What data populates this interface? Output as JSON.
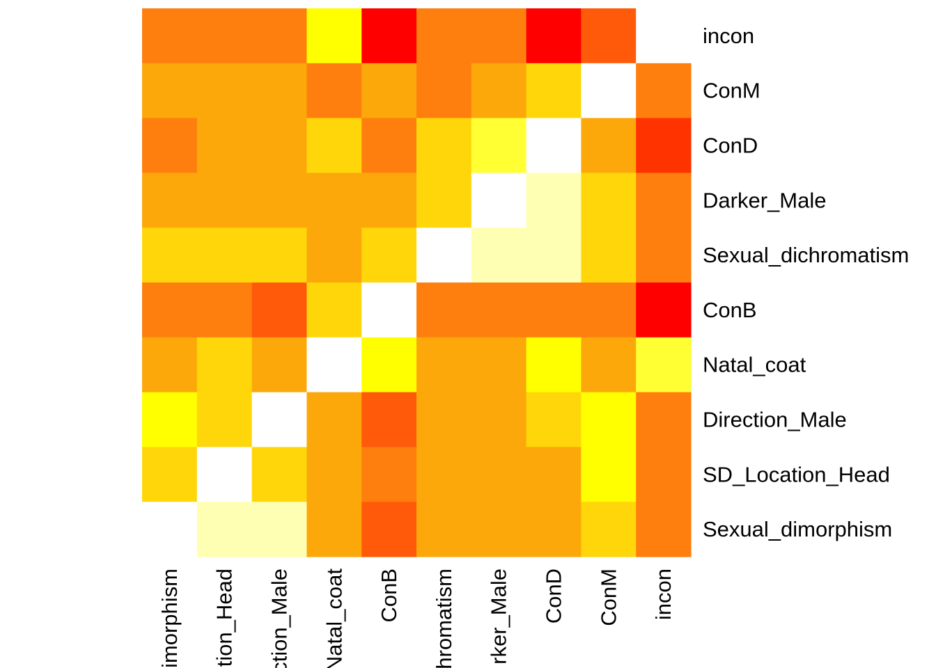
{
  "chart_data": {
    "type": "heatmap",
    "title": "",
    "xlabel": "",
    "ylabel": "",
    "grid": false,
    "legend": "none",
    "x_labels": [
      "Sexual_dimorphism",
      "SD_Location_Head",
      "Direction_Male",
      "Natal_coat",
      "ConB",
      "Sexual_dichromatism",
      "Darker_Male",
      "ConD",
      "ConM",
      "incon"
    ],
    "x_labels_visible": [
      "imorphism",
      "tion_Head",
      "ction_Male",
      "Natal_coat",
      "ConB",
      "hromatism",
      "rker_Male",
      "ConD",
      "ConM",
      "incon"
    ],
    "y_labels": [
      "incon",
      "ConM",
      "ConD",
      "Darker_Male",
      "Sexual_dichromatism",
      "ConB",
      "Natal_coat",
      "Direction_Male",
      "SD_Location_Head",
      "Sexual_dimorphism"
    ],
    "palette": [
      "#ff0000",
      "#ff3300",
      "#ff5a0a",
      "#ff7f0e",
      "#fca80b",
      "#ffd60a",
      "#ffff00",
      "#ffff33",
      "#ffffb3",
      "#ffffff"
    ],
    "cell_colors": [
      [
        "#ff7f0e",
        "#ff7f0e",
        "#ff7f0e",
        "#ffff00",
        "#ff0000",
        "#ff7f0e",
        "#ff7f0e",
        "#ff0000",
        "#ff5a0a",
        "#ffffff"
      ],
      [
        "#fca80b",
        "#fca80b",
        "#fca80b",
        "#ff7f0e",
        "#fca80b",
        "#ff7f0e",
        "#fca80b",
        "#ffd60a",
        "#ffffff",
        "#ff7f0e"
      ],
      [
        "#ff7f0e",
        "#fca80b",
        "#fca80b",
        "#ffd60a",
        "#ff7f0e",
        "#ffd60a",
        "#ffff33",
        "#ffffff",
        "#fca80b",
        "#ff3300"
      ],
      [
        "#fca80b",
        "#fca80b",
        "#fca80b",
        "#fca80b",
        "#fca80b",
        "#ffd60a",
        "#ffffff",
        "#ffffb3",
        "#ffd60a",
        "#ff7f0e"
      ],
      [
        "#ffd60a",
        "#ffd60a",
        "#ffd60a",
        "#fca80b",
        "#ffd60a",
        "#ffffff",
        "#ffffb3",
        "#ffffb3",
        "#ffd60a",
        "#ff7f0e"
      ],
      [
        "#ff7f0e",
        "#ff7f0e",
        "#ff5a0a",
        "#ffd60a",
        "#ffffff",
        "#ff7f0e",
        "#ff7f0e",
        "#ff7f0e",
        "#ff7f0e",
        "#ff0000"
      ],
      [
        "#fca80b",
        "#ffd60a",
        "#fca80b",
        "#ffffff",
        "#ffff00",
        "#fca80b",
        "#fca80b",
        "#ffff00",
        "#fca80b",
        "#ffff33"
      ],
      [
        "#ffff00",
        "#ffd60a",
        "#ffffff",
        "#fca80b",
        "#ff5a0a",
        "#fca80b",
        "#fca80b",
        "#ffd60a",
        "#ffff00",
        "#ff7f0e"
      ],
      [
        "#ffd60a",
        "#ffffff",
        "#ffd60a",
        "#fca80b",
        "#ff7f0e",
        "#fca80b",
        "#fca80b",
        "#fca80b",
        "#ffff00",
        "#ff7f0e"
      ],
      [
        "#ffffff",
        "#ffffb3",
        "#ffffb3",
        "#fca80b",
        "#ff5a0a",
        "#fca80b",
        "#fca80b",
        "#fca80b",
        "#ffd60a",
        "#ff7f0e"
      ]
    ]
  }
}
